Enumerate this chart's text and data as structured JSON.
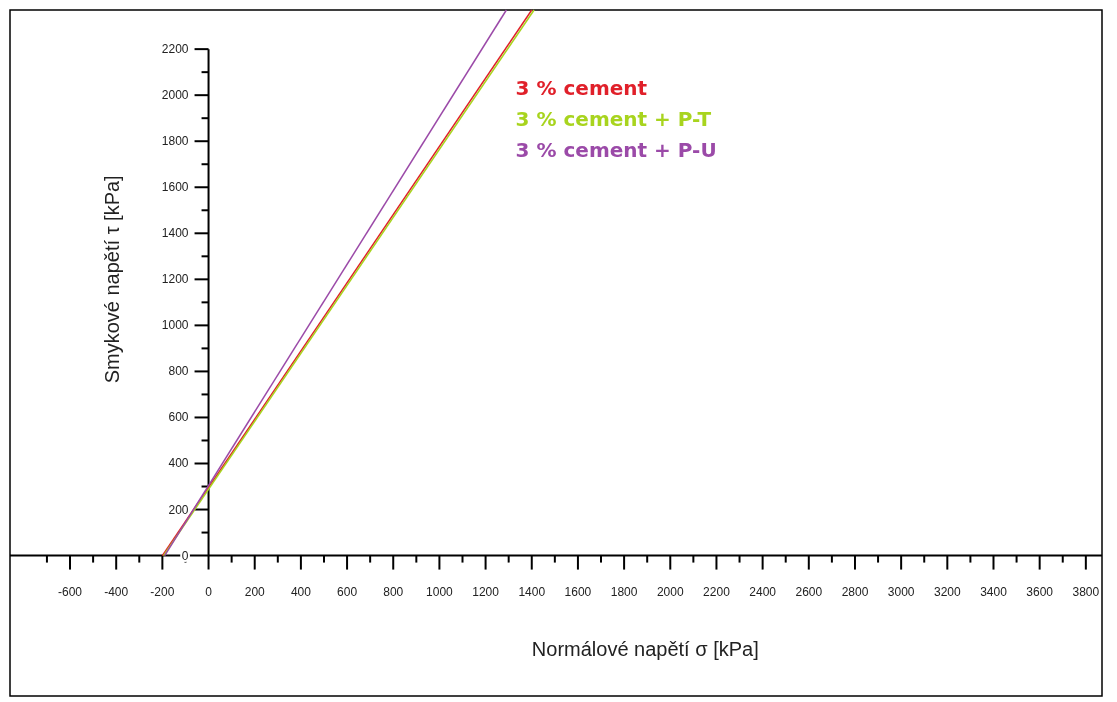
{
  "chart_data": {
    "type": "line",
    "xlabel": "Normálové napětí σ [kPa]",
    "ylabel": "Smykové napětí τ [kPa]",
    "xlim": [
      -860,
      3870
    ],
    "ylim": [
      -610,
      2370
    ],
    "xticks": [
      {
        "value": -700,
        "label": null
      },
      -600,
      {
        "value": -500,
        "label": null
      },
      -400,
      {
        "value": -300,
        "label": null
      },
      -200,
      {
        "value": -100,
        "label": null
      },
      0,
      {
        "value": 100,
        "label": null
      },
      200,
      {
        "value": 300,
        "label": null
      },
      400,
      {
        "value": 500,
        "label": null
      },
      600,
      {
        "value": 700,
        "label": null
      },
      800,
      {
        "value": 900,
        "label": null
      },
      1000,
      {
        "value": 1100,
        "label": null
      },
      1200,
      {
        "value": 1300,
        "label": null
      },
      1400,
      {
        "value": 1500,
        "label": null
      },
      1600,
      {
        "value": 1700,
        "label": null
      },
      1800,
      {
        "value": 1900,
        "label": null
      },
      2000,
      {
        "value": 2100,
        "label": null
      },
      2200,
      {
        "value": 2300,
        "label": null
      },
      2400,
      {
        "value": 2500,
        "label": null
      },
      2600,
      {
        "value": 2700,
        "label": null
      },
      2800,
      {
        "value": 2900,
        "label": null
      },
      3000,
      {
        "value": 3100,
        "label": null
      },
      3200,
      {
        "value": 3300,
        "label": null
      },
      3400,
      {
        "value": 3500,
        "label": null
      },
      3600,
      {
        "value": 3700,
        "label": null
      },
      3800
    ],
    "yticks": [
      0,
      {
        "value": 100,
        "label": null
      },
      200,
      {
        "value": 300,
        "label": null
      },
      400,
      {
        "value": 500,
        "label": null
      },
      600,
      {
        "value": 700,
        "label": null
      },
      800,
      {
        "value": 900,
        "label": null
      },
      1000,
      {
        "value": 1100,
        "label": null
      },
      1200,
      {
        "value": 1300,
        "label": null
      },
      1400,
      {
        "value": 1500,
        "label": null
      },
      1600,
      {
        "value": 1700,
        "label": null
      },
      1800,
      {
        "value": 1900,
        "label": null
      },
      2000,
      {
        "value": 2100,
        "label": null
      },
      2200
    ],
    "legend": "top right",
    "marker": "none",
    "line_style": "solid",
    "series": [
      {
        "name": "3 % cement",
        "color": "#e0202a",
        "x": [
          -200,
          1400
        ],
        "values": [
          0,
          2370
        ]
      },
      {
        "name": "3 % cement + P-T",
        "color": "#a8d41e",
        "x": [
          -195,
          1410
        ],
        "values": [
          0,
          2370
        ]
      },
      {
        "name": "3 % cement + P-U",
        "color": "#9b4aa8",
        "x": [
          -190,
          1290
        ],
        "values": [
          0,
          2370
        ]
      }
    ]
  }
}
